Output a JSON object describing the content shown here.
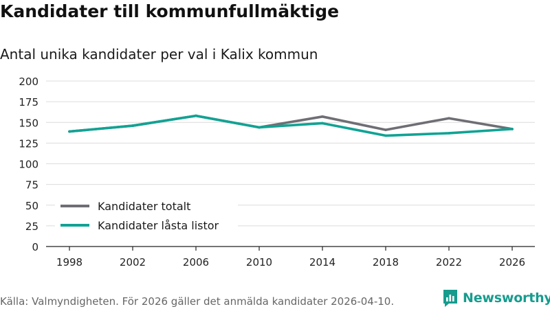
{
  "header": {
    "title": "Kandidater till kommunfullmäktige",
    "subtitle": "Antal unika kandidater per val i Kalix kommun"
  },
  "footer": {
    "source": "Källa: Valmyndigheten. För 2026 gäller det anmälda kandidater 2026-04-10.",
    "brand": "Newsworthy"
  },
  "colors": {
    "series_total": "#6e6e74",
    "series_locked": "#10a394",
    "brand": "#179c8e"
  },
  "chart_data": {
    "type": "line",
    "title": "Kandidater till kommunfullmäktige",
    "subtitle": "Antal unika kandidater per val i Kalix kommun",
    "categories": [
      "1998",
      "2002",
      "2006",
      "2010",
      "2014",
      "2018",
      "2022",
      "2026"
    ],
    "series": [
      {
        "name": "Kandidater totalt",
        "values": [
          139,
          146,
          158,
          144,
          157,
          141,
          155,
          142
        ]
      },
      {
        "name": "Kandidater låsta listor",
        "values": [
          139,
          146,
          158,
          144,
          149,
          134,
          137,
          142
        ]
      }
    ],
    "yticks": [
      "0",
      "25",
      "50",
      "75",
      "100",
      "125",
      "150",
      "175",
      "200"
    ],
    "ylim": [
      0,
      200
    ],
    "xlabel": "",
    "ylabel": "",
    "grid": true,
    "legend": "bottom-left"
  }
}
